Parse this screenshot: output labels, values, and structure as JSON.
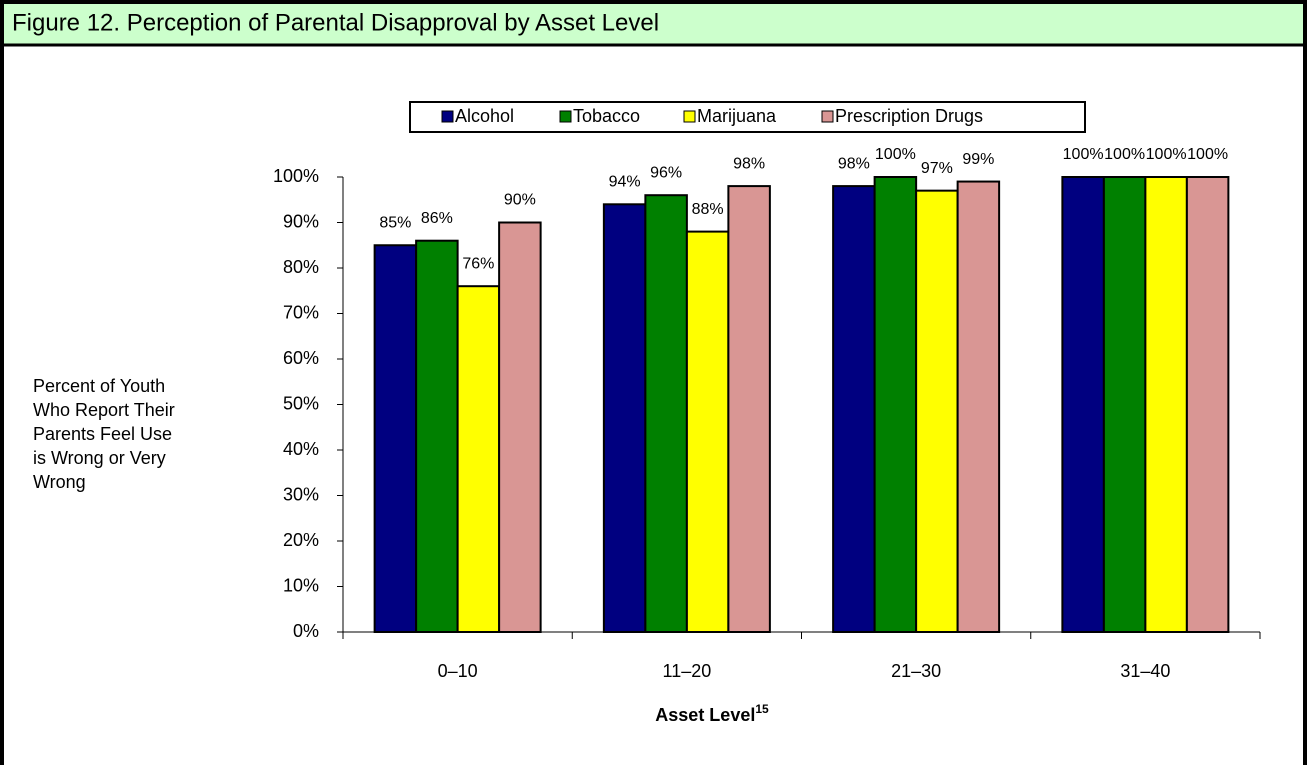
{
  "header": {
    "title": "Figure 12.  Perception of Parental Disapproval by Asset Level"
  },
  "chart_data": {
    "type": "bar",
    "categories": [
      "0–10",
      "11–20",
      "21–30",
      "31–40"
    ],
    "series": [
      {
        "name": "Alcohol",
        "color": "#000080",
        "values": [
          85,
          94,
          98,
          100
        ],
        "value_labels": [
          "85%",
          "94%",
          "98%",
          "100%"
        ]
      },
      {
        "name": "Tobacco",
        "color": "#008000",
        "values": [
          86,
          96,
          100,
          100
        ],
        "value_labels": [
          "86%",
          "96%",
          "100%",
          "100%"
        ]
      },
      {
        "name": "Marijuana",
        "color": "#ffff00",
        "values": [
          76,
          88,
          97,
          100
        ],
        "value_labels": [
          "76%",
          "88%",
          "97%",
          "100%"
        ]
      },
      {
        "name": "Prescription Drugs",
        "color": "#d99694",
        "values": [
          90,
          98,
          99,
          100
        ],
        "value_labels": [
          "90%",
          "98%",
          "99%",
          "100%"
        ]
      }
    ],
    "ylim": [
      0,
      100
    ],
    "yticks": [
      {
        "value": 0,
        "label": "0%"
      },
      {
        "value": 10,
        "label": "10%"
      },
      {
        "value": 20,
        "label": "20%"
      },
      {
        "value": 30,
        "label": "30%"
      },
      {
        "value": 40,
        "label": "40%"
      },
      {
        "value": 50,
        "label": "50%"
      },
      {
        "value": 60,
        "label": "60%"
      },
      {
        "value": 70,
        "label": "70%"
      },
      {
        "value": 80,
        "label": "80%"
      },
      {
        "value": 90,
        "label": "90%"
      },
      {
        "value": 100,
        "label": "100%"
      }
    ],
    "y_label": [
      "Percent of Youth",
      "Who Report Their",
      "Parents Feel Use",
      "is Wrong or Very",
      "Wrong"
    ],
    "x_label": "Asset Level",
    "x_label_note": "15",
    "legend": "top",
    "grid": false
  }
}
